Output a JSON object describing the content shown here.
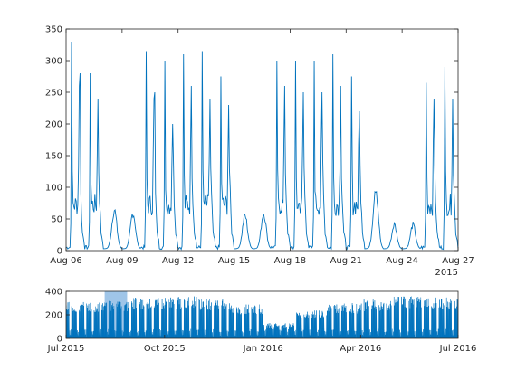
{
  "chart_data": [
    {
      "type": "line",
      "name_role": "main-plot",
      "title": "",
      "xlabel": "",
      "ylabel": "",
      "x_range": [
        "2015-08-06",
        "2015-08-27"
      ],
      "ylim": [
        0,
        350
      ],
      "y_ticks": [
        0,
        50,
        100,
        150,
        200,
        250,
        300,
        350
      ],
      "x_ticks": [
        {
          "date": "2015-08-06",
          "label": "Aug 06"
        },
        {
          "date": "2015-08-09",
          "label": "Aug 09"
        },
        {
          "date": "2015-08-12",
          "label": "Aug 12"
        },
        {
          "date": "2015-08-15",
          "label": "Aug 15"
        },
        {
          "date": "2015-08-18",
          "label": "Aug 18"
        },
        {
          "date": "2015-08-21",
          "label": "Aug 21"
        },
        {
          "date": "2015-08-24",
          "label": "Aug 24"
        },
        {
          "date": "2015-08-27",
          "label": "Aug 27"
        }
      ],
      "year_label": "2015",
      "grid": false,
      "line_color": "#0072BD",
      "daily_peak_values": [
        {
          "date": "2015-08-06",
          "values": [
            330,
            260,
            280
          ]
        },
        {
          "date": "2015-08-07",
          "values": [
            280,
            240
          ]
        },
        {
          "date": "2015-08-08",
          "values": [
            65
          ]
        },
        {
          "date": "2015-08-09",
          "values": [
            60
          ]
        },
        {
          "date": "2015-08-10",
          "values": [
            315,
            240,
            250
          ]
        },
        {
          "date": "2015-08-11",
          "values": [
            300,
            200
          ]
        },
        {
          "date": "2015-08-12",
          "values": [
            310,
            260
          ]
        },
        {
          "date": "2015-08-13",
          "values": [
            315,
            240
          ]
        },
        {
          "date": "2015-08-14",
          "values": [
            275,
            230
          ]
        },
        {
          "date": "2015-08-15",
          "values": [
            55
          ]
        },
        {
          "date": "2015-08-16",
          "values": [
            60
          ]
        },
        {
          "date": "2015-08-17",
          "values": [
            300,
            260
          ]
        },
        {
          "date": "2015-08-18",
          "values": [
            300,
            250
          ]
        },
        {
          "date": "2015-08-19",
          "values": [
            300,
            250
          ]
        },
        {
          "date": "2015-08-20",
          "values": [
            310,
            260
          ]
        },
        {
          "date": "2015-08-21",
          "values": [
            275,
            220
          ]
        },
        {
          "date": "2015-08-22",
          "values": [
            105
          ]
        },
        {
          "date": "2015-08-23",
          "values": [
            40
          ]
        },
        {
          "date": "2015-08-24",
          "values": [
            40
          ]
        },
        {
          "date": "2015-08-25",
          "values": [
            265,
            240
          ]
        },
        {
          "date": "2015-08-26",
          "values": [
            290,
            240
          ]
        },
        {
          "date": "2015-08-27",
          "values": [
            300,
            275
          ]
        }
      ]
    },
    {
      "type": "area",
      "name_role": "overview-plot",
      "title": "",
      "xlabel": "",
      "ylabel": "",
      "x_range": [
        "2015-07-01",
        "2016-07-01"
      ],
      "ylim": [
        0,
        400
      ],
      "y_ticks": [
        0,
        200,
        400
      ],
      "x_ticks": [
        {
          "date": "2015-07-01",
          "label": "Jul 2015"
        },
        {
          "date": "2015-10-01",
          "label": "Oct 2015"
        },
        {
          "date": "2016-01-01",
          "label": "Jan 2016"
        },
        {
          "date": "2016-04-01",
          "label": "Apr 2016"
        },
        {
          "date": "2016-07-01",
          "label": "Jul 2016"
        }
      ],
      "highlight_range": [
        "2015-08-06",
        "2015-08-27"
      ],
      "highlight_color": "#9fc5e8",
      "fill_color": "#0072BD",
      "monthly_weekday_peak": [
        {
          "month": "2015-07",
          "value": 310
        },
        {
          "month": "2015-08",
          "value": 320
        },
        {
          "month": "2015-09",
          "value": 350
        },
        {
          "month": "2015-10",
          "value": 360
        },
        {
          "month": "2015-11",
          "value": 340
        },
        {
          "month": "2015-12",
          "value": 290
        },
        {
          "month": "2016-01",
          "value": 130
        },
        {
          "month": "2016-02",
          "value": 240
        },
        {
          "month": "2016-03",
          "value": 300
        },
        {
          "month": "2016-04",
          "value": 330
        },
        {
          "month": "2016-05",
          "value": 360
        },
        {
          "month": "2016-06",
          "value": 350
        }
      ]
    }
  ]
}
